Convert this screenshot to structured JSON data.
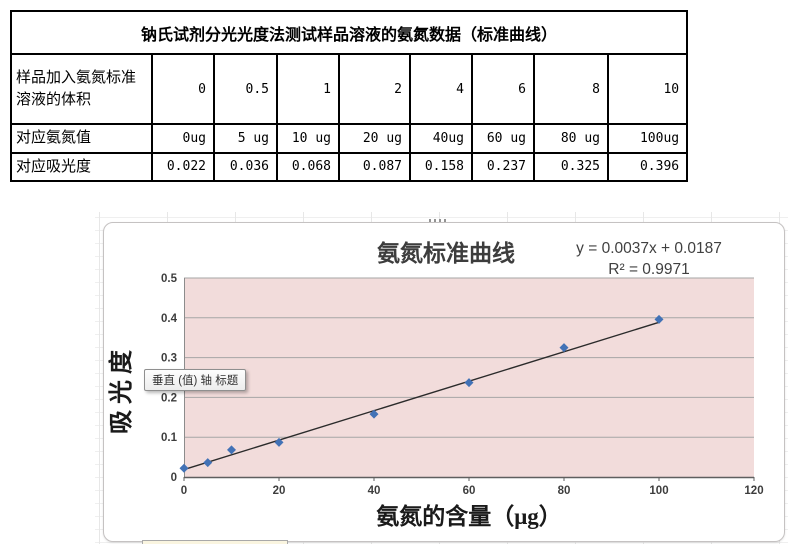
{
  "table": {
    "title": "钠氏试剂分光光度法测试样品溶液的氨氮数据（标准曲线）",
    "rows": [
      {
        "label": "样品加入氨氮标准溶液的体积",
        "values": [
          "0",
          "0.5",
          "1",
          "2",
          "4",
          "6",
          "8",
          "10"
        ]
      },
      {
        "label": "对应氨氮值",
        "values": [
          "0ug",
          "5 ug",
          "10 ug",
          "20 ug",
          "40ug",
          "60 ug",
          "80 ug",
          "100ug"
        ]
      },
      {
        "label": "对应吸光度",
        "values": [
          "0.022",
          "0.036",
          "0.068",
          "0.087",
          "0.158",
          "0.237",
          "0.325",
          "0.396"
        ]
      }
    ]
  },
  "chart_data": {
    "type": "scatter",
    "title": "氨氮标准曲线",
    "xlabel": "氨氮的含量（μg）",
    "ylabel": "吸光度",
    "x": [
      0,
      5,
      10,
      20,
      40,
      60,
      80,
      100
    ],
    "y": [
      0.022,
      0.036,
      0.068,
      0.087,
      0.158,
      0.237,
      0.325,
      0.396
    ],
    "xlim": [
      0,
      120
    ],
    "ylim": [
      0,
      0.5
    ],
    "x_tick_labels": [
      "0",
      "20",
      "40",
      "60",
      "80",
      "100",
      "120"
    ],
    "x_tick_values": [
      0,
      20,
      40,
      60,
      80,
      100,
      120
    ],
    "y_tick_labels": [
      "0",
      "0.1",
      "0.2",
      "0.3",
      "0.4",
      "0.5"
    ],
    "y_tick_values": [
      0,
      0.1,
      0.2,
      0.3,
      0.4,
      0.5
    ],
    "grid": true,
    "legend": "none",
    "trendline": {
      "slope": 0.0037,
      "intercept": 0.0187,
      "equation": "y = 0.0037x + 0.0187",
      "r_squared": "R² = 0.9971",
      "x_range": [
        0,
        100
      ]
    },
    "colors": {
      "plot_bg": "#f2dcdb",
      "marker": "#4272b6",
      "trendline": "#2b2b2b",
      "gridline": "#a6a6a6",
      "axis": "#5f5f5f",
      "tick_text": "#3d3d3d"
    }
  },
  "excel_ui": {
    "axis_tooltip": "垂直 (值) 轴 标题"
  }
}
